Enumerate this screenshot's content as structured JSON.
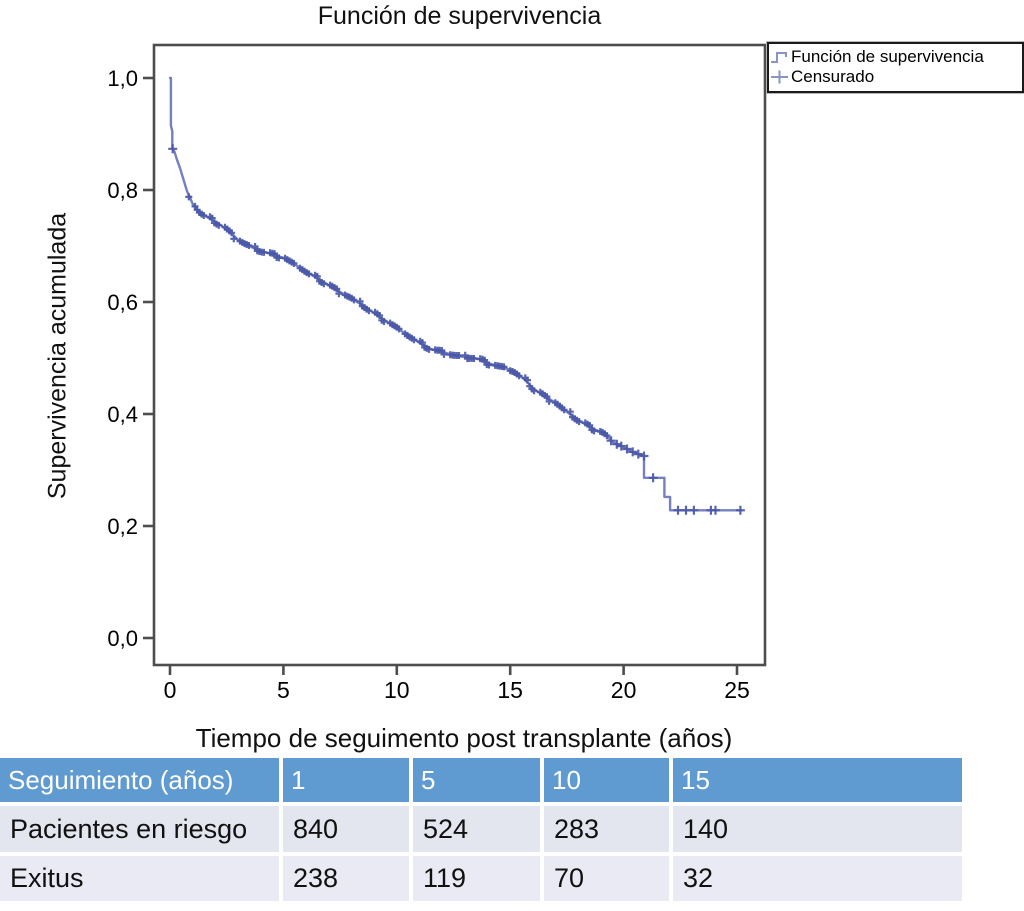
{
  "chart_data": {
    "type": "line",
    "subtype": "kaplan-meier-survival-step",
    "title": "Función de supervivencia",
    "xlabel": "Tiempo de seguimento post transplante (años)",
    "ylabel": "Supervivencia acumulada",
    "xlim": [
      -0.7,
      26.2
    ],
    "ylim": [
      -0.05,
      1.06
    ],
    "grid": false,
    "x_ticks": [
      {
        "v": 0,
        "label": "0"
      },
      {
        "v": 5,
        "label": "5"
      },
      {
        "v": 10,
        "label": "10"
      },
      {
        "v": 15,
        "label": "15"
      },
      {
        "v": 20,
        "label": "20"
      },
      {
        "v": 25,
        "label": "25"
      }
    ],
    "y_ticks": [
      {
        "v": 1.0,
        "label": "1,0"
      },
      {
        "v": 0.8,
        "label": "0,8"
      },
      {
        "v": 0.6,
        "label": "0,6"
      },
      {
        "v": 0.4,
        "label": "0,4"
      },
      {
        "v": 0.2,
        "label": "0,2"
      },
      {
        "v": 0.0,
        "label": "0,0"
      }
    ],
    "legend": {
      "position": "top-right",
      "entries": [
        {
          "marker": "step-line",
          "label": "Función de supervivencia"
        },
        {
          "marker": "plus",
          "label": "Censurado"
        }
      ]
    },
    "series": [
      {
        "name": "Función de supervivencia",
        "points": [
          [
            0,
            1.0
          ],
          [
            0.04,
            1.0
          ],
          [
            0.04,
            0.915
          ],
          [
            0.1,
            0.905
          ],
          [
            0.1,
            0.875
          ],
          [
            0.2,
            0.868
          ],
          [
            0.3,
            0.855
          ],
          [
            0.45,
            0.838
          ],
          [
            0.6,
            0.818
          ],
          [
            0.75,
            0.798
          ],
          [
            0.9,
            0.785
          ],
          [
            1.0,
            0.775
          ],
          [
            1.25,
            0.762
          ],
          [
            1.5,
            0.755
          ],
          [
            1.75,
            0.749
          ],
          [
            2.0,
            0.743
          ],
          [
            2.25,
            0.737
          ],
          [
            2.5,
            0.729
          ],
          [
            2.75,
            0.721
          ],
          [
            3.0,
            0.711
          ],
          [
            3.25,
            0.705
          ],
          [
            3.5,
            0.7
          ],
          [
            3.75,
            0.695
          ],
          [
            4.0,
            0.691
          ],
          [
            4.25,
            0.688
          ],
          [
            4.5,
            0.685
          ],
          [
            4.75,
            0.682
          ],
          [
            5.0,
            0.679
          ],
          [
            5.25,
            0.673
          ],
          [
            5.5,
            0.667
          ],
          [
            5.75,
            0.661
          ],
          [
            6.0,
            0.654
          ],
          [
            6.25,
            0.648
          ],
          [
            6.5,
            0.642
          ],
          [
            6.75,
            0.636
          ],
          [
            7.0,
            0.63
          ],
          [
            7.25,
            0.624
          ],
          [
            7.5,
            0.618
          ],
          [
            7.75,
            0.612
          ],
          [
            8.0,
            0.607
          ],
          [
            8.25,
            0.6
          ],
          [
            8.5,
            0.594
          ],
          [
            8.75,
            0.587
          ],
          [
            9.0,
            0.58
          ],
          [
            9.25,
            0.573
          ],
          [
            9.5,
            0.567
          ],
          [
            9.75,
            0.56
          ],
          [
            10.0,
            0.554
          ],
          [
            10.25,
            0.547
          ],
          [
            10.5,
            0.54
          ],
          [
            10.75,
            0.534
          ],
          [
            11.0,
            0.527
          ],
          [
            11.25,
            0.521
          ],
          [
            11.5,
            0.516
          ],
          [
            11.75,
            0.513
          ],
          [
            12.0,
            0.511
          ],
          [
            12.25,
            0.508
          ],
          [
            12.5,
            0.505
          ],
          [
            12.75,
            0.503
          ],
          [
            13.0,
            0.502
          ],
          [
            13.25,
            0.501
          ],
          [
            13.5,
            0.499
          ],
          [
            13.75,
            0.496
          ],
          [
            14.0,
            0.491
          ],
          [
            14.25,
            0.488
          ],
          [
            14.5,
            0.485
          ],
          [
            14.75,
            0.482
          ],
          [
            15.0,
            0.479
          ],
          [
            15.25,
            0.474
          ],
          [
            15.5,
            0.466
          ],
          [
            15.75,
            0.457
          ],
          [
            16.0,
            0.446
          ],
          [
            16.25,
            0.439
          ],
          [
            16.5,
            0.432
          ],
          [
            16.75,
            0.426
          ],
          [
            17.0,
            0.42
          ],
          [
            17.25,
            0.412
          ],
          [
            17.5,
            0.404
          ],
          [
            17.75,
            0.396
          ],
          [
            18.0,
            0.389
          ],
          [
            18.25,
            0.383
          ],
          [
            18.5,
            0.377
          ],
          [
            18.75,
            0.372
          ],
          [
            19.0,
            0.368
          ],
          [
            19.25,
            0.362
          ],
          [
            19.5,
            0.35
          ],
          [
            19.75,
            0.345
          ],
          [
            20.0,
            0.341
          ],
          [
            20.3,
            0.334
          ],
          [
            20.6,
            0.329
          ],
          [
            20.9,
            0.325
          ],
          [
            20.9,
            0.286
          ],
          [
            21.8,
            0.286
          ],
          [
            21.8,
            0.252
          ],
          [
            22.05,
            0.252
          ],
          [
            22.05,
            0.228
          ],
          [
            25.2,
            0.228
          ]
        ]
      }
    ],
    "censored_marks": {
      "on_curve": true,
      "dense_time_range": [
        0.9,
        19.3
      ],
      "dense_count": 140,
      "sparse_times": [
        0.12,
        19.45,
        19.7,
        19.9,
        20.15,
        20.4,
        20.65,
        20.9,
        21.3,
        22.4,
        22.75,
        23.1,
        23.85,
        24.05,
        25.15
      ]
    },
    "colors": {
      "curve": "#7580bf",
      "censor_marks": "#4a58a8",
      "axis_frame": "#4d4d4d",
      "legend_marker": "#8a93c8",
      "text": "#000000"
    }
  },
  "risk_table": {
    "header_row": {
      "label": "Seguimiento (años)",
      "values": [
        "1",
        "5",
        "10",
        "15"
      ]
    },
    "rows": [
      {
        "label": "Pacientes en riesgo",
        "values": [
          "840",
          "524",
          "283",
          "140"
        ]
      },
      {
        "label": "Exitus",
        "values": [
          "238",
          "119",
          "70",
          "32"
        ]
      }
    ],
    "colors": {
      "header_bg": "#5f9ad0",
      "header_text": "#ffffff",
      "row_bg_1": "#e3e5ef",
      "row_bg_2": "#e9eaf3",
      "row_text": "#111111",
      "gap": "#ffffff"
    }
  }
}
